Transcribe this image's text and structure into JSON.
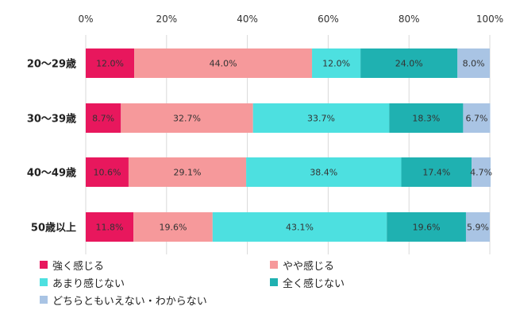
{
  "chart_data": {
    "type": "bar",
    "orientation": "horizontal",
    "stacked": true,
    "categories": [
      "20〜29歳",
      "30〜39歳",
      "40〜49歳",
      "50歳以上"
    ],
    "xlim": [
      0,
      100
    ],
    "x_ticks": [
      "0%",
      "20%",
      "40%",
      "60%",
      "80%",
      "100%"
    ],
    "grid": true,
    "legend_position": "bottom",
    "series": [
      {
        "name": "強く感じる",
        "color": "#e8175d",
        "values": [
          12.0,
          8.7,
          10.6,
          11.8
        ],
        "labels": [
          "12.0%",
          "8.7%",
          "10.6%",
          "11.8%"
        ]
      },
      {
        "name": "やや感じる",
        "color": "#f6999b",
        "values": [
          44.0,
          32.7,
          29.1,
          19.6
        ],
        "labels": [
          "44.0%",
          "32.7%",
          "29.1%",
          "19.6%"
        ]
      },
      {
        "name": "あまり感じない",
        "color": "#4de0e0",
        "values": [
          12.0,
          33.7,
          38.4,
          43.1
        ],
        "labels": [
          "12.0%",
          "33.7%",
          "38.4%",
          "43.1%"
        ]
      },
      {
        "name": "全く感じない",
        "color": "#1fb1b1",
        "values": [
          24.0,
          18.3,
          17.4,
          19.6
        ],
        "labels": [
          "24.0%",
          "18.3%",
          "17.4%",
          "19.6%"
        ]
      },
      {
        "name": "どちらともいえない・わからない",
        "color": "#a9c4e4",
        "values": [
          8.0,
          6.7,
          4.7,
          5.9
        ],
        "labels": [
          "8.0%",
          "6.7%",
          "4.7%",
          "5.9%"
        ]
      }
    ]
  }
}
